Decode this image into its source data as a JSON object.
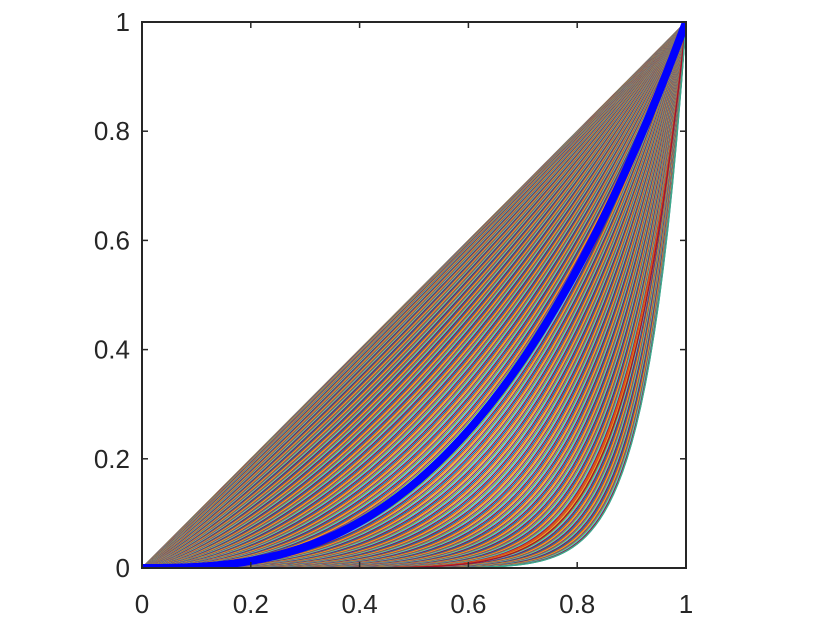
{
  "chart_data": {
    "type": "line",
    "title": "",
    "xlabel": "",
    "ylabel": "",
    "xlim": [
      0,
      1
    ],
    "ylim": [
      0,
      1
    ],
    "grid": false,
    "legend": "none",
    "x_ticks": [
      "0",
      "0.2",
      "0.4",
      "0.6",
      "0.8",
      "1"
    ],
    "y_ticks": [
      "0",
      "0.2",
      "0.4",
      "0.6",
      "0.8",
      "1"
    ],
    "x_tick_values": [
      0,
      0.2,
      0.4,
      0.6,
      0.8,
      1
    ],
    "y_tick_values": [
      0,
      0.2,
      0.4,
      0.6,
      0.8,
      1
    ],
    "curve_family": {
      "description_of_shape": "power curves y = x^p",
      "exponent_min": 1.0,
      "exponent_max": 14.0,
      "exponent_distribution": "dense near 1, sparse near max",
      "count": 260,
      "palette": [
        "#0072BD",
        "#D95319",
        "#EDB120",
        "#7E2F8E",
        "#77AC30",
        "#4DBEEE",
        "#A2142F"
      ],
      "extra_curves": [
        {
          "exponent": 9.0,
          "color": "#D95319"
        },
        {
          "exponent": 9.4,
          "color": "#A2142F"
        },
        {
          "exponent": 14.0,
          "color": "#3FA98A"
        }
      ]
    },
    "highlight_series": {
      "exponent": 2.7,
      "color": "#0000FF"
    }
  }
}
